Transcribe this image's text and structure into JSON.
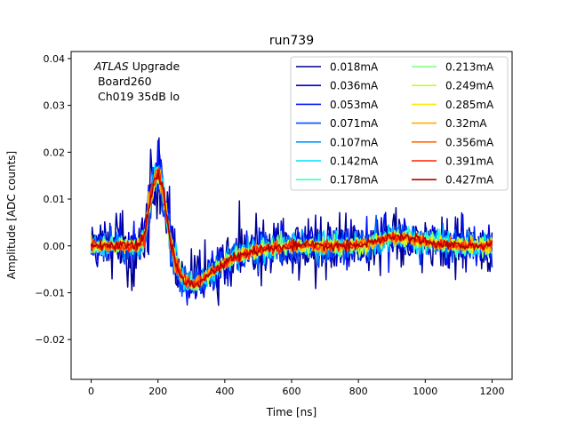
{
  "chart_data": {
    "type": "line",
    "title": "run739",
    "xlabel": "Time [ns]",
    "ylabel": "Amplitude [ADC counts]",
    "xlim": [
      -60,
      1260
    ],
    "ylim": [
      -0.0285,
      0.0415
    ],
    "xticks": [
      0,
      200,
      400,
      600,
      800,
      1000,
      1200
    ],
    "xtick_labels": [
      "0",
      "200",
      "400",
      "600",
      "800",
      "1000",
      "1200"
    ],
    "yticks": [
      -0.02,
      -0.01,
      0.0,
      0.01,
      0.02,
      0.03,
      0.04
    ],
    "ytick_labels": [
      "−0.02",
      "−0.01",
      "0.00",
      "0.01",
      "0.02",
      "0.03",
      "0.04"
    ],
    "grid": false,
    "legend_position": "top-right",
    "legend_columns": 2,
    "annotation": {
      "atlas": "ATLAS",
      "upgrade": " Upgrade",
      "line2": " Board260",
      "line3": " Ch019 35dB lo"
    },
    "x_range_ns": [
      0,
      1200
    ],
    "sample_step_ns": 3.125,
    "template_points": [
      [
        0,
        0.0
      ],
      [
        140,
        0.0
      ],
      [
        160,
        0.002
      ],
      [
        175,
        0.009
      ],
      [
        190,
        0.0145
      ],
      [
        200,
        0.0158
      ],
      [
        215,
        0.012
      ],
      [
        235,
        0.002
      ],
      [
        255,
        -0.0045
      ],
      [
        280,
        -0.0075
      ],
      [
        310,
        -0.0082
      ],
      [
        340,
        -0.0068
      ],
      [
        380,
        -0.0045
      ],
      [
        430,
        -0.0025
      ],
      [
        500,
        -0.001
      ],
      [
        560,
        -0.0003
      ],
      [
        620,
        0.0
      ],
      [
        700,
        0.0
      ],
      [
        760,
        0.0
      ],
      [
        820,
        0.0003
      ],
      [
        860,
        0.001
      ],
      [
        900,
        0.0018
      ],
      [
        940,
        0.0018
      ],
      [
        1000,
        0.001
      ],
      [
        1060,
        0.0004
      ],
      [
        1120,
        0.0
      ],
      [
        1200,
        0.0
      ]
    ],
    "series": [
      {
        "name": "0.018mA",
        "color": "#00008f",
        "noise_amplitude": 0.0065
      },
      {
        "name": "0.036mA",
        "color": "#0000cc",
        "noise_amplitude": 0.0045
      },
      {
        "name": "0.053mA",
        "color": "#0014ff",
        "noise_amplitude": 0.0036
      },
      {
        "name": "0.071mA",
        "color": "#0050ff",
        "noise_amplitude": 0.003
      },
      {
        "name": "0.107mA",
        "color": "#0094ff",
        "noise_amplitude": 0.0025
      },
      {
        "name": "0.142mA",
        "color": "#00e0ff",
        "noise_amplitude": 0.0021
      },
      {
        "name": "0.178mA",
        "color": "#3affc5",
        "noise_amplitude": 0.0018
      },
      {
        "name": "0.213mA",
        "color": "#7aff7d",
        "noise_amplitude": 0.0016
      },
      {
        "name": "0.249mA",
        "color": "#bdff3a",
        "noise_amplitude": 0.0014
      },
      {
        "name": "0.285mA",
        "color": "#ffea00",
        "noise_amplitude": 0.0013
      },
      {
        "name": "0.32mA",
        "color": "#ffb000",
        "noise_amplitude": 0.0012
      },
      {
        "name": "0.356mA",
        "color": "#ff6a00",
        "noise_amplitude": 0.0011
      },
      {
        "name": "0.391mA",
        "color": "#ff2000",
        "noise_amplitude": 0.001
      },
      {
        "name": "0.427mA",
        "color": "#b40000",
        "noise_amplitude": 0.0009
      }
    ]
  }
}
